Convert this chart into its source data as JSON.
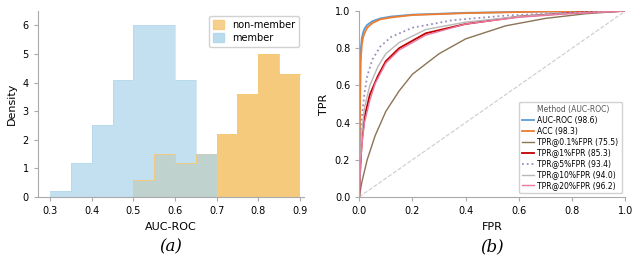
{
  "hist_member_bins": [
    0.3,
    0.35,
    0.4,
    0.45,
    0.5,
    0.55,
    0.6,
    0.65
  ],
  "hist_member_heights": [
    0.2,
    1.2,
    2.5,
    4.1,
    6.0,
    6.0,
    4.1,
    1.5
  ],
  "hist_nonmember_bins": [
    0.5,
    0.55,
    0.6,
    0.65,
    0.7,
    0.75,
    0.8,
    0.85
  ],
  "hist_nonmember_heights": [
    0.6,
    1.5,
    1.2,
    1.5,
    2.2,
    3.6,
    5.0,
    4.3
  ],
  "member_color": "#aed6ea",
  "nonmember_color": "#f5c97a",
  "hist_xlim": [
    0.27,
    0.91
  ],
  "hist_ylim": [
    0,
    6.5
  ],
  "hist_xlabel": "AUC-ROC",
  "hist_ylabel": "Density",
  "hist_yticks": [
    0,
    1,
    2,
    3,
    4,
    5,
    6
  ],
  "hist_xticks": [
    0.3,
    0.4,
    0.5,
    0.6,
    0.7,
    0.8,
    0.9
  ],
  "subplot_label_a": "(a)",
  "subplot_label_b": "(b)",
  "roc_xlabel": "FPR",
  "roc_ylabel": "TPR",
  "roc_xlim": [
    0.0,
    1.0
  ],
  "roc_ylim": [
    0.0,
    1.0
  ],
  "roc_xticks": [
    0.0,
    0.2,
    0.4,
    0.6,
    0.8,
    1.0
  ],
  "roc_yticks": [
    0.0,
    0.2,
    0.4,
    0.6,
    0.8,
    1.0
  ],
  "legend_title": "Method (AUC-ROC)",
  "curves": [
    {
      "label": "AUC-ROC (98.6)",
      "color": "#5b9bd5",
      "linestyle": "-",
      "linewidth": 1.3,
      "fpr": [
        0.0,
        0.005,
        0.01,
        0.015,
        0.02,
        0.03,
        0.05,
        0.08,
        0.12,
        0.2,
        0.4,
        0.7,
        1.0
      ],
      "tpr": [
        0.0,
        0.78,
        0.855,
        0.885,
        0.905,
        0.925,
        0.945,
        0.96,
        0.97,
        0.98,
        0.99,
        0.997,
        1.0
      ]
    },
    {
      "label": "ACC (98.3)",
      "color": "#ed7d31",
      "linestyle": "-",
      "linewidth": 1.3,
      "fpr": [
        0.0,
        0.005,
        0.01,
        0.015,
        0.02,
        0.03,
        0.05,
        0.08,
        0.12,
        0.2,
        0.4,
        0.7,
        1.0
      ],
      "tpr": [
        0.0,
        0.72,
        0.82,
        0.86,
        0.88,
        0.91,
        0.935,
        0.955,
        0.965,
        0.978,
        0.988,
        0.997,
        1.0
      ]
    },
    {
      "label": "TPR@0.1%FPR (75.5)",
      "color": "#8b7355",
      "linestyle": "-",
      "linewidth": 1.0,
      "fpr": [
        0.0,
        0.01,
        0.03,
        0.06,
        0.1,
        0.15,
        0.2,
        0.3,
        0.4,
        0.55,
        0.7,
        0.85,
        1.0
      ],
      "tpr": [
        0.0,
        0.08,
        0.2,
        0.33,
        0.46,
        0.57,
        0.66,
        0.77,
        0.85,
        0.92,
        0.96,
        0.985,
        1.0
      ]
    },
    {
      "label": "TPR@1%FPR (85.3)",
      "color": "#c00000",
      "linestyle": "-",
      "linewidth": 1.3,
      "fpr": [
        0.0,
        0.005,
        0.01,
        0.02,
        0.04,
        0.07,
        0.1,
        0.15,
        0.25,
        0.4,
        0.6,
        0.8,
        1.0
      ],
      "tpr": [
        0.0,
        0.18,
        0.3,
        0.43,
        0.55,
        0.65,
        0.73,
        0.8,
        0.88,
        0.93,
        0.97,
        0.99,
        1.0
      ]
    },
    {
      "label": "TPR@5%FPR (93.4)",
      "color": "#9b8fc0",
      "linestyle": ":",
      "linewidth": 1.3,
      "fpr": [
        0.0,
        0.005,
        0.01,
        0.02,
        0.03,
        0.05,
        0.08,
        0.12,
        0.2,
        0.35,
        0.55,
        0.8,
        1.0
      ],
      "tpr": [
        0.0,
        0.3,
        0.43,
        0.56,
        0.65,
        0.74,
        0.81,
        0.86,
        0.91,
        0.95,
        0.975,
        0.992,
        1.0
      ]
    },
    {
      "label": "TPR@10%FPR (94.0)",
      "color": "#b8b8b8",
      "linestyle": "-",
      "linewidth": 1.0,
      "fpr": [
        0.0,
        0.005,
        0.01,
        0.02,
        0.04,
        0.07,
        0.1,
        0.15,
        0.25,
        0.4,
        0.6,
        0.8,
        1.0
      ],
      "tpr": [
        0.0,
        0.22,
        0.35,
        0.48,
        0.6,
        0.7,
        0.77,
        0.83,
        0.9,
        0.94,
        0.97,
        0.988,
        1.0
      ]
    },
    {
      "label": "TPR@20%FPR (96.2)",
      "color": "#e878a0",
      "linestyle": "-",
      "linewidth": 1.0,
      "fpr": [
        0.0,
        0.005,
        0.01,
        0.02,
        0.04,
        0.06,
        0.1,
        0.15,
        0.25,
        0.4,
        0.6,
        0.8,
        1.0
      ],
      "tpr": [
        0.0,
        0.18,
        0.28,
        0.4,
        0.52,
        0.61,
        0.72,
        0.79,
        0.87,
        0.93,
        0.966,
        0.986,
        1.0
      ]
    }
  ]
}
